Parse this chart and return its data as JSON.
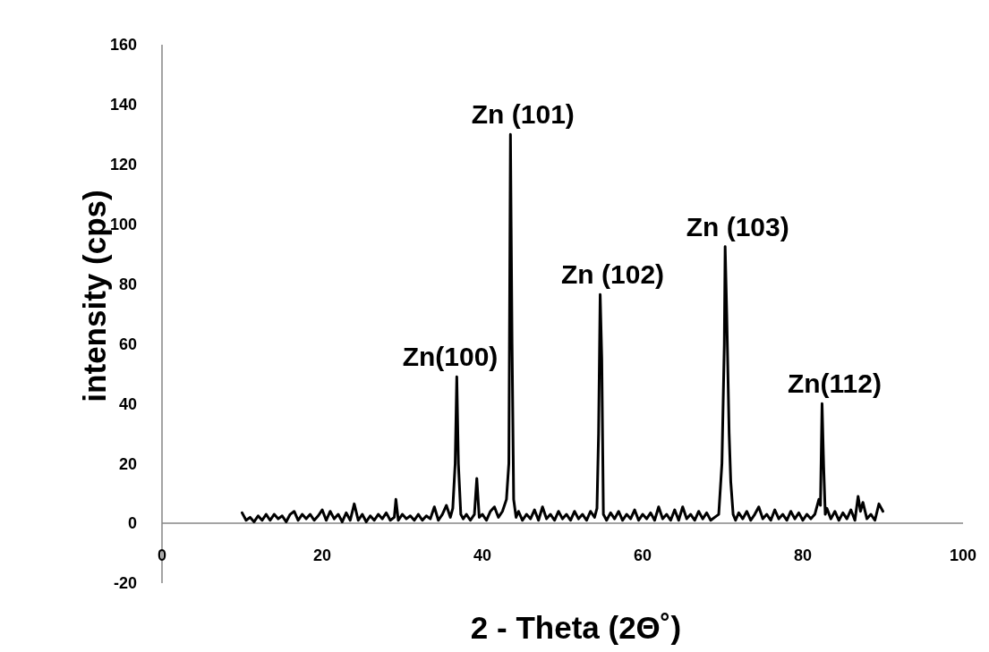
{
  "chart_data": {
    "type": "line",
    "xlabel": "2 - Theta (2Θ˚)",
    "ylabel": "intensity (cps)",
    "xlim": [
      0,
      100
    ],
    "xticks": [
      0,
      20,
      40,
      60,
      80,
      100
    ],
    "ylim": [
      -20,
      160
    ],
    "yticks": [
      -20,
      0,
      20,
      40,
      60,
      80,
      100,
      120,
      140,
      160
    ],
    "grid": false,
    "marker": "none",
    "line_style": "solid",
    "series": [
      {
        "color": "#000000",
        "x": [
          10,
          10.5,
          11,
          11.5,
          12,
          12.5,
          13,
          13.5,
          14,
          14.5,
          15,
          15.5,
          16,
          16.5,
          17,
          17.5,
          18,
          18.5,
          19,
          19.5,
          20,
          20.5,
          21,
          21.5,
          22,
          22.5,
          23,
          23.5,
          24,
          24.5,
          25,
          25.5,
          26,
          26.5,
          27,
          27.5,
          28,
          28.5,
          29,
          29.2,
          29.5,
          30,
          30.5,
          31,
          31.5,
          32,
          32.5,
          33,
          33.5,
          34,
          34.5,
          35,
          35.5,
          36,
          36.3,
          36.6,
          36.8,
          37,
          37.3,
          37.6,
          38,
          38.5,
          39,
          39.3,
          39.6,
          40,
          40.5,
          41,
          41.5,
          42,
          42.5,
          43,
          43.3,
          43.5,
          43.7,
          43.9,
          44.2,
          44.5,
          45,
          45.5,
          46,
          46.5,
          47,
          47.5,
          48,
          48.5,
          49,
          49.5,
          50,
          50.5,
          51,
          51.5,
          52,
          52.5,
          53,
          53.5,
          54,
          54.3,
          54.5,
          54.7,
          54.9,
          55.1,
          55.5,
          56,
          56.5,
          57,
          57.5,
          58,
          58.5,
          59,
          59.5,
          60,
          60.5,
          61,
          61.5,
          62,
          62.5,
          63,
          63.5,
          64,
          64.5,
          65,
          65.5,
          66,
          66.5,
          67,
          67.5,
          68,
          68.5,
          69,
          69.5,
          69.9,
          70.2,
          70.3,
          70.5,
          70.8,
          71,
          71.3,
          71.6,
          72,
          72.5,
          73,
          73.5,
          74,
          74.5,
          75,
          75.5,
          76,
          76.5,
          77,
          77.5,
          78,
          78.5,
          79,
          79.5,
          80,
          80.5,
          81,
          81.5,
          82,
          82.2,
          82.4,
          82.6,
          82.8,
          83,
          83.5,
          84,
          84.5,
          85,
          85.5,
          86,
          86.5,
          86.9,
          87.2,
          87.5,
          88,
          88.5,
          89,
          89.5,
          90
        ],
        "values": [
          3.5,
          1,
          2,
          0.5,
          2.5,
          1,
          3,
          1,
          3,
          1.5,
          2.5,
          0.5,
          3,
          4,
          1,
          3,
          1.5,
          3,
          1,
          2.5,
          4.5,
          1,
          4,
          1.5,
          3,
          0.5,
          3.5,
          1,
          6.5,
          1,
          3,
          0.5,
          2.5,
          1,
          3,
          1.5,
          3.5,
          1,
          2,
          8,
          1,
          3,
          1.5,
          2.5,
          1,
          3,
          1,
          2.5,
          1.5,
          5.5,
          1,
          3,
          6,
          2,
          5,
          20,
          49,
          20,
          3,
          1.5,
          3,
          1,
          3,
          15,
          2,
          3,
          1,
          4,
          5.5,
          2,
          4,
          8,
          20,
          130,
          60,
          8,
          2,
          4,
          1,
          3,
          1.5,
          4.5,
          1,
          5.5,
          1.5,
          3,
          1,
          4,
          1.5,
          3,
          1,
          4,
          1.5,
          3,
          1,
          4,
          2,
          5,
          30,
          76.5,
          55,
          3,
          1,
          3.5,
          1.5,
          4,
          1,
          3,
          1.5,
          4.5,
          1,
          3,
          1.5,
          3.5,
          1,
          5.5,
          1.5,
          3,
          1,
          4.5,
          1,
          5.5,
          1.5,
          3,
          1,
          4,
          1.5,
          3.5,
          1,
          2,
          3,
          20,
          60,
          92.5,
          70,
          30,
          14,
          3,
          1,
          3.5,
          1.5,
          4,
          1,
          3,
          5.5,
          1.5,
          3,
          1,
          4.5,
          1.5,
          3,
          1,
          4,
          1.5,
          3.5,
          1,
          3,
          1.5,
          3,
          8,
          6,
          40,
          19,
          3,
          5,
          1.5,
          4,
          1,
          3.5,
          1.5,
          4.5,
          1,
          9,
          4,
          7,
          1.5,
          3,
          1,
          6.5,
          4
        ]
      }
    ],
    "annotations": [
      {
        "text": "Zn(100)",
        "x": 36.8,
        "y": 49
      },
      {
        "text": "Zn (101)",
        "x": 43.5,
        "y": 130
      },
      {
        "text": "Zn (102)",
        "x": 54.7,
        "y": 76.5
      },
      {
        "text": "Zn (103)",
        "x": 70.3,
        "y": 92.5
      },
      {
        "text": "Zn(112)",
        "x": 82.4,
        "y": 40
      }
    ]
  }
}
